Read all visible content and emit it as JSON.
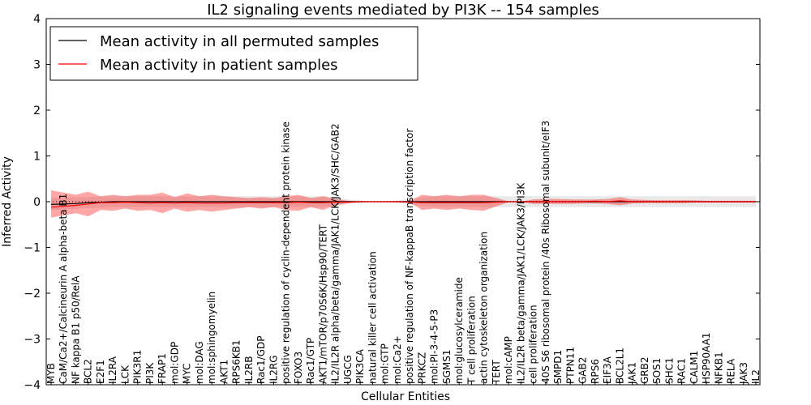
{
  "chart_data": {
    "type": "line",
    "title": "IL2 signaling events mediated by PI3K -- 154 samples",
    "xlabel": "Cellular Entities",
    "ylabel": "Inferred Activity",
    "ylim": [
      -4,
      4
    ],
    "yticks": [
      -4,
      -3,
      -2,
      -1,
      0,
      1,
      2,
      3,
      4
    ],
    "ytick_labels": [
      "−4",
      "−3",
      "−2",
      "−1",
      "0",
      "1",
      "2",
      "3",
      "4"
    ],
    "legend_position": "top-left",
    "categories": [
      "MYB",
      "CaM/Ca2+/Calcineurin A alpha-beta B1",
      "NF kappa B1 p50/RelA",
      "BCL2",
      "E2F1",
      "IL2RA",
      "LCK",
      "PIK3R1",
      "PI3K",
      "FRAP1",
      "mol:GDP",
      "MYC",
      "mol:DAG",
      "mol:sphingomyelin",
      "AKT1",
      "RPS6KB1",
      "IL2RB",
      "Rac1/GDP",
      "IL2RG",
      "positive regulation of cyclin-dependent protein kinase",
      "FOXO3",
      "Rac1/GTP",
      "AKT1/mTOR/p70S6K/Hsp90/TERT",
      "IL2/IL2R alpha/beta/gamma/JAK1/LCK/JAK3/SHC/GAB2",
      "UGCG",
      "PIK3CA",
      "natural killer cell activation",
      "mol:GTP",
      "mol:Ca2+",
      "positive regulation of NF-kappaB transcription factor",
      "PRKCZ",
      "mol:PI-3-4-5-P3",
      "SGMS1",
      "mol:glucosylceramide",
      "T cell proliferation",
      "actin cytoskeleton organization",
      "TERT",
      "mol:cAMP",
      "IL2/IL2R beta/gamma/JAK1/LCK/JAK3/PI3K",
      "cell proliferation",
      "40S S6 ribosomal protein /40s Ribosomal subunit/eIF3",
      "SMPD1",
      "PTPN11",
      "GAB2",
      "RPS6",
      "EIF3A",
      "BCL2L1",
      "JAK1",
      "GRB2",
      "SOS1",
      "SHC1",
      "RAC1",
      "CALM1",
      "HSP90AA1",
      "NFKB1",
      "RELA",
      "JAK3",
      "IL2"
    ],
    "series": [
      {
        "name": "Mean activity in all permuted samples",
        "color": "#000000",
        "values": [
          -0.06,
          -0.05,
          -0.04,
          -0.02,
          -0.01,
          0.0,
          0.0,
          0.0,
          0.0,
          0.0,
          0.0,
          0.0,
          0.0,
          0.0,
          0.0,
          0.0,
          0.0,
          0.0,
          0.0,
          0.0,
          0.0,
          0.0,
          0.0,
          0.0,
          0.0,
          0.0,
          0.0,
          0.0,
          0.0,
          0.0,
          0.0,
          0.0,
          0.0,
          0.0,
          0.0,
          0.0,
          0.0,
          0.0,
          0.0,
          0.0,
          0.0,
          0.0,
          0.0,
          0.0,
          0.0,
          0.0,
          0.0,
          0.0,
          0.0,
          0.0,
          0.0,
          0.0,
          0.0,
          0.0,
          0.0,
          0.0,
          0.0,
          0.0
        ],
        "band_low": [
          -0.18,
          -0.17,
          -0.15,
          -0.14,
          -0.13,
          -0.12,
          -0.12,
          -0.12,
          -0.12,
          -0.12,
          -0.12,
          -0.12,
          -0.12,
          -0.12,
          -0.12,
          -0.12,
          -0.12,
          -0.12,
          -0.12,
          -0.12,
          -0.12,
          -0.12,
          -0.12,
          -0.1,
          -0.05,
          -0.03,
          0.0,
          0.0,
          -0.03,
          -0.05,
          -0.1,
          -0.12,
          -0.12,
          -0.12,
          -0.12,
          -0.12,
          -0.12,
          -0.12,
          -0.12,
          -0.12,
          -0.12,
          -0.12,
          -0.12,
          -0.12,
          -0.12,
          -0.12,
          -0.12,
          -0.12,
          -0.12,
          -0.12,
          -0.12,
          -0.12,
          -0.12,
          -0.12,
          -0.12,
          -0.12,
          -0.12,
          -0.12
        ],
        "band_high": [
          0.08,
          0.09,
          0.1,
          0.1,
          0.11,
          0.12,
          0.12,
          0.12,
          0.12,
          0.12,
          0.12,
          0.12,
          0.12,
          0.12,
          0.12,
          0.12,
          0.12,
          0.12,
          0.12,
          0.12,
          0.12,
          0.12,
          0.12,
          0.1,
          0.05,
          0.03,
          0.0,
          0.0,
          0.03,
          0.05,
          0.1,
          0.12,
          0.12,
          0.12,
          0.12,
          0.12,
          0.12,
          0.12,
          0.12,
          0.12,
          0.12,
          0.12,
          0.12,
          0.12,
          0.12,
          0.12,
          0.12,
          0.12,
          0.12,
          0.12,
          0.12,
          0.12,
          0.12,
          0.12,
          0.12,
          0.12,
          0.12,
          0.12
        ]
      },
      {
        "name": "Mean activity in patient samples",
        "color": "#ff0000",
        "values": [
          -0.12,
          -0.1,
          -0.08,
          -0.05,
          -0.02,
          -0.02,
          -0.01,
          -0.02,
          -0.03,
          -0.02,
          -0.03,
          -0.02,
          -0.03,
          -0.03,
          -0.03,
          -0.02,
          -0.02,
          -0.02,
          -0.02,
          -0.02,
          -0.01,
          -0.02,
          -0.02,
          -0.01,
          -0.01,
          0.0,
          0.0,
          0.0,
          0.0,
          -0.01,
          -0.02,
          -0.02,
          -0.02,
          -0.02,
          -0.02,
          -0.02,
          -0.01,
          0.0,
          0.0,
          0.0,
          0.0,
          0.0,
          0.0,
          0.0,
          0.01,
          0.0,
          0.02,
          0.0,
          0.0,
          0.0,
          0.0,
          0.0,
          0.0,
          0.0,
          0.0,
          0.0,
          0.0,
          0.0
        ],
        "band_low": [
          -0.35,
          -0.3,
          -0.25,
          -0.32,
          -0.18,
          -0.2,
          -0.15,
          -0.2,
          -0.18,
          -0.25,
          -0.15,
          -0.22,
          -0.18,
          -0.22,
          -0.18,
          -0.15,
          -0.12,
          -0.15,
          -0.12,
          -0.18,
          -0.2,
          -0.12,
          -0.18,
          -0.08,
          -0.03,
          -0.01,
          0.0,
          0.0,
          -0.01,
          -0.02,
          -0.18,
          -0.15,
          -0.18,
          -0.15,
          -0.18,
          -0.2,
          -0.1,
          -0.01,
          0.0,
          -0.05,
          -0.05,
          -0.05,
          -0.05,
          -0.04,
          -0.04,
          -0.05,
          -0.08,
          -0.04,
          -0.03,
          -0.03,
          -0.03,
          -0.03,
          -0.02,
          -0.02,
          -0.02,
          -0.02,
          -0.02,
          -0.02
        ],
        "band_high": [
          0.25,
          0.2,
          0.15,
          0.22,
          0.12,
          0.15,
          0.12,
          0.15,
          0.15,
          0.2,
          0.1,
          0.18,
          0.12,
          0.15,
          0.12,
          0.1,
          0.08,
          0.1,
          0.08,
          0.12,
          0.15,
          0.08,
          0.12,
          0.06,
          0.02,
          0.01,
          0.0,
          0.0,
          0.01,
          0.02,
          0.15,
          0.12,
          0.15,
          0.12,
          0.15,
          0.15,
          0.08,
          0.01,
          0.0,
          0.05,
          0.06,
          0.06,
          0.05,
          0.05,
          0.05,
          0.06,
          0.1,
          0.05,
          0.04,
          0.03,
          0.03,
          0.03,
          0.03,
          0.02,
          0.02,
          0.02,
          0.02,
          0.02
        ]
      }
    ]
  }
}
